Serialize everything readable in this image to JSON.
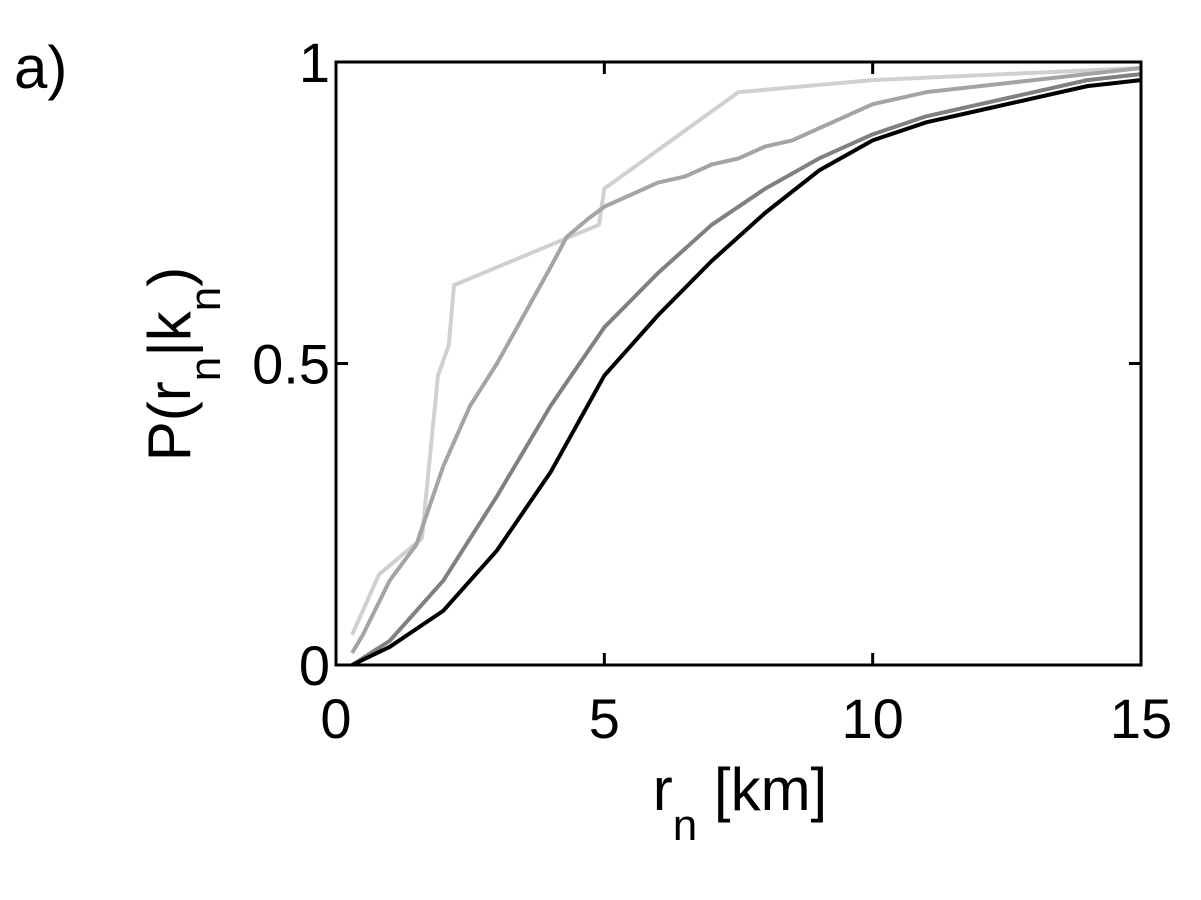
{
  "chart_data": {
    "type": "line",
    "annotation": "a)",
    "xlabel": [
      "r",
      "n",
      " [km]"
    ],
    "ylabel": [
      "P(r",
      "n",
      "|k",
      "n",
      ")"
    ],
    "xlim": [
      0,
      15
    ],
    "ylim": [
      0,
      1
    ],
    "xticks": [
      0,
      5,
      10,
      15
    ],
    "yticks": [
      0,
      0.5,
      1
    ],
    "grid": false,
    "series": [
      {
        "color": "#d0d0d0",
        "x": [
          0.3,
          0.8,
          1.6,
          1.9,
          2.1,
          2.2,
          4.9,
          5,
          7.5,
          10,
          12.5,
          15
        ],
        "values": [
          0.05,
          0.15,
          0.21,
          0.48,
          0.53,
          0.63,
          0.73,
          0.79,
          0.95,
          0.97,
          0.98,
          0.99
        ]
      },
      {
        "color": "#a4a4a4",
        "x": [
          0.3,
          0.5,
          1,
          1.5,
          2,
          2.5,
          3,
          3.5,
          4,
          4.3,
          4.7,
          5,
          5.5,
          6,
          6.5,
          7,
          7.5,
          8,
          8.5,
          9,
          10,
          11,
          12,
          13,
          14,
          15
        ],
        "values": [
          0.02,
          0.05,
          0.14,
          0.2,
          0.33,
          0.43,
          0.5,
          0.58,
          0.66,
          0.71,
          0.74,
          0.76,
          0.78,
          0.8,
          0.81,
          0.83,
          0.84,
          0.86,
          0.87,
          0.89,
          0.93,
          0.95,
          0.96,
          0.97,
          0.98,
          0.99
        ]
      },
      {
        "color": "#808080",
        "x": [
          0.3,
          1,
          2,
          3,
          4,
          5,
          6,
          7,
          8,
          9,
          10,
          11,
          12,
          13,
          14,
          15
        ],
        "values": [
          0,
          0.04,
          0.14,
          0.28,
          0.43,
          0.56,
          0.65,
          0.73,
          0.79,
          0.84,
          0.88,
          0.91,
          0.93,
          0.95,
          0.97,
          0.98
        ]
      },
      {
        "color": "#000000",
        "x": [
          0.3,
          1,
          2,
          3,
          4,
          5,
          6,
          7,
          8,
          9,
          10,
          11,
          12,
          13,
          14,
          15
        ],
        "values": [
          0,
          0.03,
          0.09,
          0.19,
          0.32,
          0.48,
          0.58,
          0.67,
          0.75,
          0.82,
          0.87,
          0.9,
          0.92,
          0.94,
          0.96,
          0.97
        ]
      }
    ]
  }
}
